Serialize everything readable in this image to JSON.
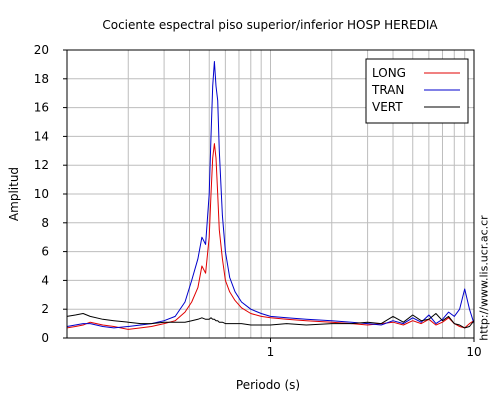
{
  "side_url": "http://www.lis.ucr.ac.cr",
  "chart_data": {
    "type": "line",
    "title": "Cociente espectral piso superior/inferior  HOSP HEREDIA",
    "xlabel": "Periodo (s)",
    "ylabel": "Amplitud",
    "xscale": "log",
    "xlim": [
      0.1,
      10
    ],
    "ylim": [
      0,
      20
    ],
    "x_ticks": [
      1,
      10
    ],
    "x_tick_labels": [
      "1",
      "10"
    ],
    "y_ticks": [
      0,
      2,
      4,
      6,
      8,
      10,
      12,
      14,
      16,
      18,
      20
    ],
    "y_tick_labels": [
      "0",
      "2",
      "4",
      "6",
      "8",
      "10",
      "12",
      "14",
      "16",
      "18",
      "20"
    ],
    "grid": true,
    "legend_position": "top-right",
    "series": [
      {
        "name": "LONG",
        "color": "#e00000",
        "x": [
          0.1,
          0.11,
          0.12,
          0.13,
          0.15,
          0.17,
          0.2,
          0.23,
          0.26,
          0.3,
          0.34,
          0.38,
          0.41,
          0.44,
          0.46,
          0.48,
          0.5,
          0.51,
          0.52,
          0.53,
          0.54,
          0.55,
          0.56,
          0.58,
          0.6,
          0.63,
          0.67,
          0.72,
          0.8,
          0.9,
          1.0,
          1.2,
          1.5,
          2.0,
          2.5,
          3.0,
          3.5,
          4.0,
          4.5,
          5.0,
          5.5,
          6.0,
          6.5,
          7.0,
          7.5,
          8.0,
          8.5,
          9.0,
          9.5,
          10.0
        ],
        "y": [
          0.7,
          0.8,
          0.9,
          1.1,
          0.9,
          0.8,
          0.6,
          0.7,
          0.8,
          1.0,
          1.2,
          1.8,
          2.5,
          3.5,
          5.0,
          4.5,
          7.0,
          10.0,
          12.5,
          13.5,
          12.5,
          10.0,
          7.5,
          5.5,
          4.0,
          3.2,
          2.6,
          2.1,
          1.7,
          1.5,
          1.4,
          1.3,
          1.2,
          1.1,
          1.0,
          0.9,
          1.0,
          1.1,
          0.9,
          1.2,
          1.0,
          1.3,
          0.9,
          1.1,
          1.4,
          1.0,
          0.8,
          0.7,
          1.0,
          1.2
        ]
      },
      {
        "name": "TRAN",
        "color": "#0000cc",
        "x": [
          0.1,
          0.11,
          0.12,
          0.13,
          0.15,
          0.17,
          0.2,
          0.23,
          0.26,
          0.3,
          0.34,
          0.38,
          0.41,
          0.44,
          0.46,
          0.48,
          0.5,
          0.51,
          0.52,
          0.53,
          0.54,
          0.55,
          0.56,
          0.58,
          0.6,
          0.63,
          0.67,
          0.72,
          0.8,
          0.9,
          1.0,
          1.2,
          1.5,
          2.0,
          2.5,
          3.0,
          3.5,
          4.0,
          4.5,
          5.0,
          5.5,
          6.0,
          6.5,
          7.0,
          7.5,
          8.0,
          8.5,
          9.0,
          9.5,
          10.0
        ],
        "y": [
          0.8,
          0.9,
          1.0,
          1.0,
          0.8,
          0.7,
          0.8,
          0.9,
          1.0,
          1.2,
          1.5,
          2.5,
          4.0,
          5.5,
          7.0,
          6.5,
          10.0,
          14.0,
          17.5,
          19.2,
          17.5,
          16.5,
          13.0,
          8.5,
          6.0,
          4.2,
          3.2,
          2.5,
          2.0,
          1.7,
          1.5,
          1.4,
          1.3,
          1.2,
          1.1,
          1.0,
          0.9,
          1.2,
          1.0,
          1.4,
          1.1,
          1.6,
          1.0,
          1.3,
          1.8,
          1.5,
          2.0,
          3.4,
          2.0,
          1.0
        ]
      },
      {
        "name": "VERT",
        "color": "#000000",
        "x": [
          0.1,
          0.11,
          0.12,
          0.13,
          0.15,
          0.17,
          0.2,
          0.23,
          0.26,
          0.3,
          0.34,
          0.38,
          0.41,
          0.44,
          0.46,
          0.48,
          0.5,
          0.51,
          0.52,
          0.53,
          0.54,
          0.55,
          0.56,
          0.58,
          0.6,
          0.63,
          0.67,
          0.72,
          0.8,
          0.9,
          1.0,
          1.2,
          1.5,
          2.0,
          2.5,
          3.0,
          3.5,
          4.0,
          4.5,
          5.0,
          5.5,
          6.0,
          6.5,
          7.0,
          7.5,
          8.0,
          8.5,
          9.0,
          9.5,
          10.0
        ],
        "y": [
          1.5,
          1.6,
          1.7,
          1.5,
          1.3,
          1.2,
          1.1,
          1.0,
          1.0,
          1.1,
          1.1,
          1.1,
          1.2,
          1.3,
          1.4,
          1.3,
          1.3,
          1.4,
          1.3,
          1.3,
          1.2,
          1.2,
          1.1,
          1.1,
          1.0,
          1.0,
          1.0,
          1.0,
          0.9,
          0.9,
          0.9,
          1.0,
          0.9,
          1.0,
          1.0,
          1.1,
          1.0,
          1.5,
          1.1,
          1.6,
          1.2,
          1.3,
          1.7,
          1.2,
          1.5,
          1.0,
          0.9,
          0.7,
          0.8,
          1.2
        ]
      }
    ]
  }
}
